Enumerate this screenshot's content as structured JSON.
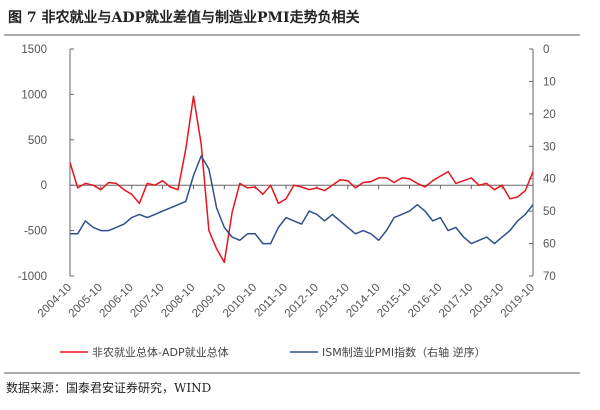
{
  "title": "图 7 非农就业与ADP就业差值与制造业PMI走势负相关",
  "source": "数据来源：国泰君安证券研究，WIND",
  "chart_data": {
    "type": "line",
    "title": "图 7 非农就业与ADP就业差值与制造业PMI走势负相关",
    "x_start": "2004-10",
    "x_step_months": 3,
    "x_tick_labels": [
      "2004-10",
      "2005-10",
      "2006-10",
      "2007-10",
      "2008-10",
      "2009-10",
      "2010-10",
      "2011-10",
      "2012-10",
      "2013-10",
      "2014-10",
      "2015-10",
      "2016-10",
      "2017-10",
      "2018-10",
      "2019-10"
    ],
    "y_left": {
      "ylim": [
        -1000,
        1500
      ],
      "ticks": [
        "1500",
        "1000",
        "500",
        "0",
        "-500",
        "-1000"
      ]
    },
    "y_right": {
      "ylim": [
        0,
        70
      ],
      "inverted": true,
      "ticks": [
        "0",
        "10",
        "20",
        "30",
        "40",
        "50",
        "60",
        "70"
      ]
    },
    "legend_position": "bottom",
    "grid": false,
    "series": [
      {
        "name": "非农就业总体-ADP就业总体",
        "axis": "left",
        "color": "#e8141c",
        "values": [
          250,
          -30,
          20,
          0,
          -50,
          30,
          20,
          -50,
          -100,
          -200,
          20,
          0,
          50,
          -20,
          -50,
          400,
          980,
          450,
          -500,
          -700,
          -850,
          -300,
          20,
          -30,
          -20,
          -100,
          0,
          -200,
          -150,
          0,
          -20,
          -50,
          -30,
          -60,
          0,
          60,
          50,
          -30,
          30,
          40,
          80,
          80,
          30,
          80,
          70,
          20,
          -20,
          50,
          100,
          150,
          20,
          50,
          80,
          0,
          20,
          -50,
          0,
          -150,
          -130,
          -60,
          150
        ]
      },
      {
        "name": "ISM制造业PMI指数（右轴 逆序）",
        "axis": "right",
        "color": "#2f4f8a",
        "values": [
          57,
          57,
          53,
          55,
          56,
          56,
          55,
          54,
          52,
          51,
          52,
          51,
          50,
          49,
          48,
          47,
          39,
          33,
          37,
          49,
          55,
          58,
          59,
          57,
          57,
          60,
          60,
          55,
          52,
          53,
          54,
          50,
          51,
          53,
          51,
          53,
          55,
          57,
          56,
          57,
          59,
          56,
          52,
          51,
          50,
          48,
          50,
          53,
          52,
          56,
          55,
          58,
          60,
          59,
          58,
          60,
          58,
          56,
          53,
          51,
          48
        ]
      }
    ]
  }
}
